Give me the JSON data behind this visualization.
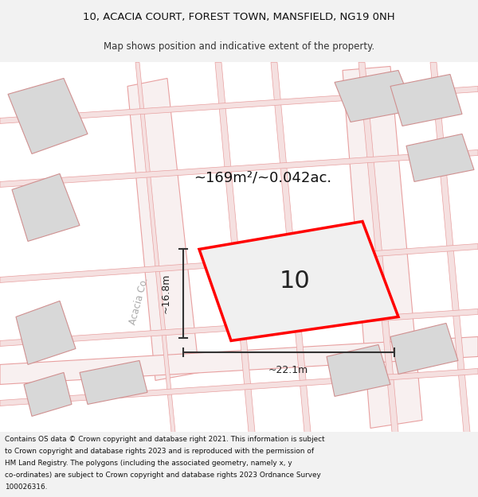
{
  "title_line1": "10, ACACIA COURT, FOREST TOWN, MANSFIELD, NG19 0NH",
  "title_line2": "Map shows position and indicative extent of the property.",
  "area_text": "~169m²/~0.042ac.",
  "number_label": "10",
  "width_label": "~22.1m",
  "height_label": "~16.8m",
  "road_label": "Acacia Co.",
  "footer_lines": [
    "Contains OS data © Crown copyright and database right 2021. This information is subject",
    "to Crown copyright and database rights 2023 and is reproduced with the permission of",
    "HM Land Registry. The polygons (including the associated geometry, namely x, y",
    "co-ordinates) are subject to Crown copyright and database rights 2023 Ordnance Survey",
    "100026316."
  ],
  "bg_color": "#f2f2f2",
  "map_bg": "#ffffff",
  "plot_edge": "#ff0000",
  "building_fill": "#d8d8d8",
  "building_edge": "#d09090",
  "road_fill": "#f8f0f0",
  "road_edge": "#e8a0a0",
  "dim_line_color": "#333333",
  "title_fontsize": 9.5,
  "subtitle_fontsize": 8.5,
  "footer_fontsize": 6.4
}
